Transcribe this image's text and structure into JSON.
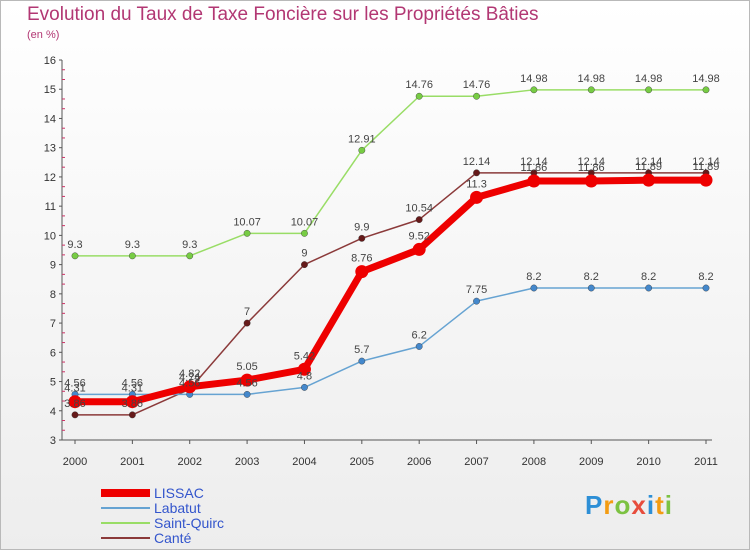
{
  "title": "Evolution du Taux de Taxe Foncière sur les Propriétés Bâties",
  "subtitle": "(en %)",
  "logo": {
    "chars": [
      "P",
      "r",
      "o",
      "x",
      "i",
      "t",
      "i"
    ],
    "colors": [
      "#2d8fd6",
      "#f39c12",
      "#7cc242",
      "#e74c3c",
      "#2d8fd6",
      "#f39c12",
      "#7cc242"
    ]
  },
  "chart_data": {
    "type": "line",
    "title": "Evolution du Taux de Taxe Foncière sur les Propriétés Bâties",
    "ylabel": "(en %)",
    "ylim": [
      3,
      16
    ],
    "yticks": [
      3,
      4,
      5,
      6,
      7,
      8,
      9,
      10,
      11,
      12,
      13,
      14,
      15,
      16
    ],
    "x": [
      "2000",
      "2001",
      "2002",
      "2003",
      "2004",
      "2005",
      "2006",
      "2007",
      "2008",
      "2009",
      "2010",
      "2011"
    ],
    "series": [
      {
        "name": "Saint-Quirc",
        "color": "#99dd66",
        "marker": "#77cc44",
        "width": 1.5,
        "values": [
          9.3,
          9.3,
          9.3,
          10.07,
          10.07,
          12.91,
          14.76,
          14.76,
          14.98,
          14.98,
          14.98,
          14.98
        ],
        "labels": [
          "9.3",
          "9.3",
          "9.3",
          "10.07",
          "10.07",
          "12.91",
          "14.76",
          "14.76",
          "14.98",
          "14.98",
          "14.98",
          "14.98"
        ]
      },
      {
        "name": "Canté",
        "color": "#8b3a3a",
        "marker": "#661a1a",
        "width": 1.5,
        "values": [
          3.86,
          3.86,
          4.74,
          7,
          9,
          9.9,
          10.54,
          12.14,
          12.14,
          12.14,
          12.14,
          12.14
        ],
        "labels": [
          "3.86",
          "3.86",
          "4.74",
          "7",
          "9",
          "9.9",
          "10.54",
          "12.14",
          "12.14",
          "12.14",
          "12.14",
          "12.14"
        ]
      },
      {
        "name": "Labatut",
        "color": "#66a3d2",
        "marker": "#4488cc",
        "width": 1.5,
        "values": [
          4.56,
          4.56,
          4.56,
          4.56,
          4.8,
          5.7,
          6.2,
          7.75,
          8.2,
          8.2,
          8.2,
          8.2
        ],
        "labels": [
          "4.56",
          "4.56",
          "4.56",
          "4.56",
          "4.8",
          "5.7",
          "6.2",
          "7.75",
          "8.2",
          "8.2",
          "8.2",
          "8.2"
        ]
      },
      {
        "name": "LISSAC",
        "color": "#ee0000",
        "marker": "#ee0000",
        "width": 7,
        "values": [
          4.31,
          4.31,
          4.82,
          5.05,
          5.42,
          8.76,
          9.52,
          11.3,
          11.86,
          11.86,
          11.89,
          11.89
        ],
        "labels": [
          "4.31",
          "4.31",
          "4.82",
          "5.05",
          "5.42",
          "8.76",
          "9.52",
          "11.3",
          "11.86",
          "11.86",
          "11.89",
          "11.89"
        ]
      }
    ],
    "legend_order": [
      "LISSAC",
      "Labatut",
      "Saint-Quirc",
      "Canté"
    ],
    "legend_position": "bottom-left"
  }
}
